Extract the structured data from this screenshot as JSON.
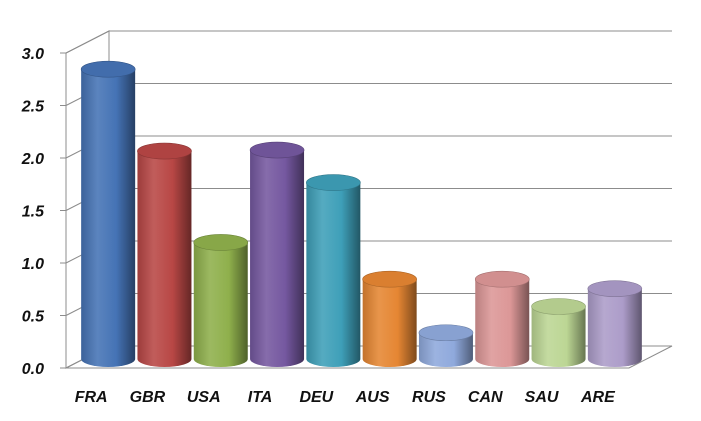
{
  "chart_data": {
    "type": "bar",
    "style": "3d-cylinder",
    "categories": [
      "FRA",
      "GBR",
      "USA",
      "ITA",
      "DEU",
      "AUS",
      "RUS",
      "CAN",
      "SAU",
      "ARE"
    ],
    "values": [
      2.76,
      1.98,
      1.11,
      1.99,
      1.68,
      0.76,
      0.25,
      0.76,
      0.5,
      0.67
    ],
    "ylim": [
      0,
      3.0
    ],
    "yticks": [
      "0.0",
      "0.5",
      "1.0",
      "1.5",
      "2.0",
      "2.5",
      "3.0"
    ],
    "grid": true,
    "legend": "none",
    "colors": [
      "#4573b5",
      "#b84745",
      "#8fb04c",
      "#7558a0",
      "#3e9fb8",
      "#e58633",
      "#8fa9dc",
      "#dc9797",
      "#bcd694",
      "#ac9cc9"
    ]
  }
}
